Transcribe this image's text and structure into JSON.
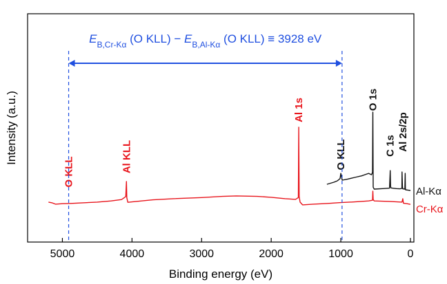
{
  "chart_data": {
    "type": "line",
    "xlabel": "Binding energy (eV)",
    "ylabel": "Intensity (a.u.)",
    "xlim": [
      5500,
      -50
    ],
    "ylim": [
      0,
      100
    ],
    "xticks": [
      5000,
      4000,
      3000,
      2000,
      1000,
      0
    ],
    "series": [
      {
        "name": "Cr-Kα",
        "color": "#e8141b",
        "x": [
          5200,
          5150,
          5100,
          5000,
          4900,
          4700,
          4500,
          4300,
          4150,
          4090,
          4080,
          4075,
          4060,
          4000,
          3700,
          3400,
          3000,
          2700,
          2500,
          2200,
          2000,
          1800,
          1650,
          1610,
          1604,
          1598,
          1585,
          1550,
          1400,
          1200,
          1000,
          800,
          600,
          545,
          540,
          535,
          520,
          300,
          120,
          110,
          100,
          50,
          0
        ],
        "values": [
          17.5,
          17.2,
          16.6,
          16.8,
          16.9,
          17.2,
          17.5,
          18.0,
          18.6,
          19.9,
          26.5,
          19.5,
          17.4,
          17.6,
          18.5,
          19.0,
          19.5,
          20.0,
          20.2,
          20.0,
          19.6,
          19.0,
          18.7,
          19.5,
          50.3,
          20.0,
          17.5,
          16.3,
          16.6,
          16.9,
          17.3,
          17.6,
          18.0,
          18.3,
          22.3,
          18.6,
          18.0,
          17.8,
          17.5,
          19.0,
          17.0,
          16.8,
          16.5
        ]
      },
      {
        "name": "Al-Kα",
        "color": "#111111",
        "x": [
          1200,
          1100,
          1050,
          1010,
          1000,
          990,
          980,
          900,
          800,
          700,
          600,
          560,
          545,
          540,
          535,
          520,
          400,
          300,
          290,
          285,
          280,
          200,
          150,
          122,
          120,
          115,
          110,
          80,
          75,
          72,
          70,
          30,
          0
        ],
        "values": [
          25.3,
          26.2,
          26.8,
          27.8,
          30.1,
          28.5,
          27.1,
          27.6,
          28.3,
          29.0,
          30.1,
          29.5,
          30.5,
          56.9,
          24.0,
          23.2,
          23.4,
          23.6,
          31.3,
          24.5,
          23.7,
          23.4,
          23.3,
          23.5,
          30.7,
          24.5,
          23.3,
          23.2,
          30.1,
          23.8,
          22.9,
          22.7,
          22.6
        ]
      }
    ],
    "peak_labels": [
      {
        "text": "O KLL",
        "energy": 4910,
        "color": "#e8141b"
      },
      {
        "text": "Al KLL",
        "energy": 4080,
        "color": "#e8141b"
      },
      {
        "text": "Al 1s",
        "energy": 1604,
        "color": "#e8141b"
      },
      {
        "text": "O KLL",
        "energy": 1000,
        "color": "#111111"
      },
      {
        "text": "O 1s",
        "energy": 540,
        "color": "#111111"
      },
      {
        "text": "C 1s",
        "energy": 290,
        "color": "#111111"
      },
      {
        "text": "Al 2s/2p",
        "energy": 110,
        "color": "#111111"
      }
    ],
    "shift_annotation": {
      "parts": [
        "E",
        "B,Cr-Kα",
        " (O KLL) − ",
        "E",
        "B,Al-Kα",
        " (O KLL) ≡ 3928 eV"
      ],
      "from": 4910,
      "to": 982,
      "color": "#1f4fe0"
    }
  }
}
